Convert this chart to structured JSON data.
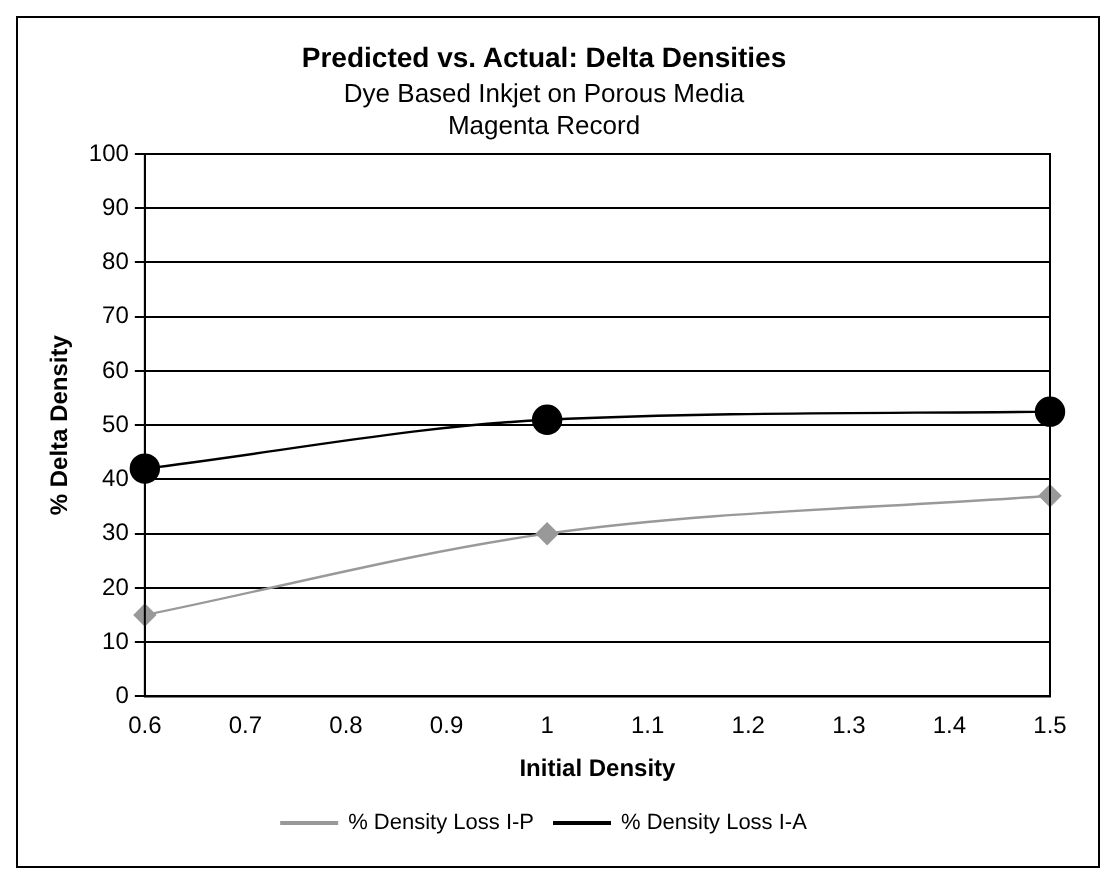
{
  "chart_data": {
    "type": "line",
    "title": "Predicted vs. Actual: Delta Densities",
    "subtitle": "Dye Based Inkjet on Porous Media\nMagenta Record",
    "xlabel": "Initial Density",
    "ylabel": "% Delta Density",
    "x": [
      0.6,
      1,
      1.5
    ],
    "series": [
      {
        "name": "% Density Loss I-P",
        "color": "#999999",
        "values": [
          15,
          30,
          37
        ],
        "marker": "diamond"
      },
      {
        "name": "% Density Loss I-A",
        "color": "#000000",
        "values": [
          42,
          51,
          52.5
        ],
        "marker": "circle"
      }
    ],
    "xlim": [
      0.6,
      1.5
    ],
    "xticks": [
      0.6,
      0.7,
      0.8,
      0.9,
      1,
      1.1,
      1.2,
      1.3,
      1.4,
      1.5
    ],
    "ylim": [
      0,
      100
    ],
    "yticks": [
      0,
      10,
      20,
      30,
      40,
      50,
      60,
      70,
      80,
      90,
      100
    ],
    "grid": "y",
    "legend": "bottom",
    "line_style": "solid"
  }
}
